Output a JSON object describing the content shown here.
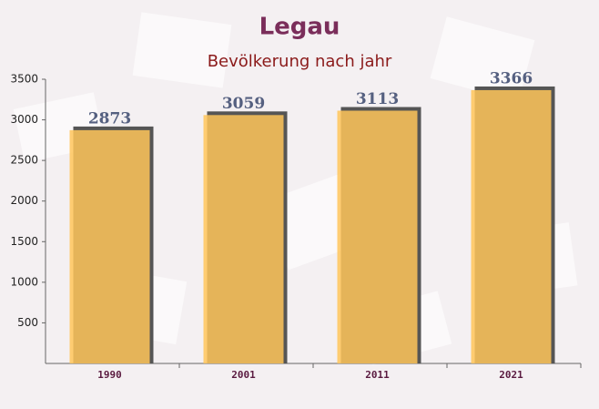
{
  "chart_data": {
    "type": "bar",
    "title": "Legau",
    "subtitle": "Bevölkerung nach jahr",
    "categories": [
      "1990",
      "2001",
      "2011",
      "2021"
    ],
    "values": [
      2873,
      3059,
      3113,
      3366
    ],
    "color": "#ffc55a",
    "ylim": [
      0,
      3500
    ],
    "yticks": [
      500,
      1000,
      1500,
      2000,
      2500,
      3000,
      3500
    ]
  }
}
